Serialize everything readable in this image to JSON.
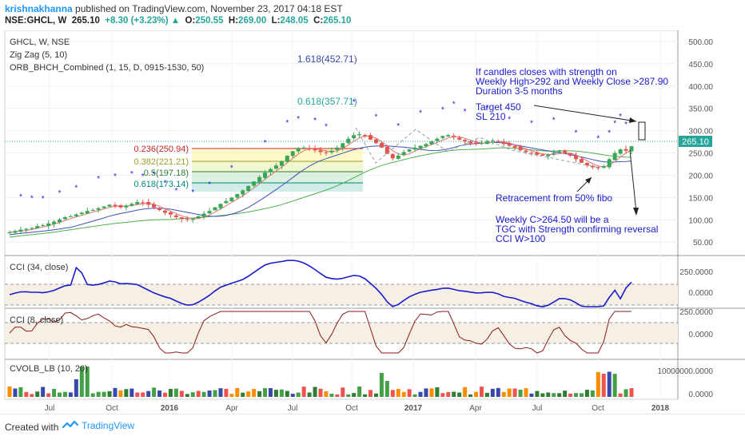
{
  "header": {
    "author": "krishnakhanna",
    "published": "published on TradingView.com, November 23, 2017 04:18 EST",
    "symbol": "NSE:GHCL, W",
    "price": "265.10",
    "change": "+8.30 (+3.23%)",
    "o_label": "O:",
    "o_value": "250.55",
    "h_label": "H:",
    "h_value": "269.00",
    "l_label": "L:",
    "l_value": "248.05",
    "c_label": "C:",
    "c_value": "265.10"
  },
  "legend": {
    "line1": "GHCL, W, NSE",
    "line2": "Zig Zag (5, 10)",
    "line3": "ORB_BHCH_Combined (1, 15, D, 0915-1530, 50)"
  },
  "annotations": {
    "fib_ext_1618": "1.618(452.71)",
    "fib_ext_0618": "0.618(357.71)",
    "cond1": "If candles closes with strength on",
    "cond2": "Weekly High>292 and Weekly Close >287.90",
    "cond3": "Duration 3-5 months",
    "target": "Target 450",
    "sl": "SL 210",
    "retr": "Retracement from 50% fibo",
    "weekly1": "Weekly C>264.50 will be a",
    "weekly2": "TGC with Strength confirming reversal",
    "weekly3": "CCI W>100",
    "price_tag": "265.10"
  },
  "fib": [
    {
      "label": "0.236(250.94)",
      "color": "#c62828"
    },
    {
      "label": "0.382(221.21)",
      "color": "#9e9d24"
    },
    {
      "label": "0.5(197.18)",
      "color": "#2e7d32"
    },
    {
      "label": "0.618(173.14)",
      "color": "#00897b"
    }
  ],
  "panes": {
    "cci34": "CCI (34, close)",
    "cci8": "CCI (8, close)",
    "cvolb": "CVOLB_LB (10, 20)"
  },
  "axis": {
    "price_ticks": [
      "500.00",
      "450.00",
      "400.00",
      "350.00",
      "300.00",
      "250.00",
      "200.00",
      "150.00",
      "100.00",
      "50.00"
    ],
    "cci34_ticks": [
      "250.0000",
      "0.0000"
    ],
    "cci8_ticks": [
      "250.0000",
      "0.0000"
    ],
    "vol_ticks": [
      "10000000.0000",
      "0.0000"
    ],
    "time_ticks": [
      "Jul",
      "Oct",
      "2016",
      "Apr",
      "Jul",
      "Oct",
      "2017",
      "Apr",
      "Jul",
      "Oct",
      "2018"
    ]
  },
  "footer": {
    "created": "Created with",
    "brand": "TradingView"
  },
  "colors": {
    "up": "#26a69a",
    "candle_up": "#3aa757",
    "candle_down": "#e5534b",
    "cci34": "#1a1acd",
    "cci8": "#8b1a1a",
    "link": "#2196f3"
  },
  "chart_data": {
    "type": "candlestick",
    "symbol": "GHCL",
    "interval": "W",
    "last_close": 265.1,
    "ylim": [
      20,
      525
    ],
    "fib_retracement": [
      {
        "level": 0.236,
        "price": 250.94
      },
      {
        "level": 0.382,
        "price": 221.21
      },
      {
        "level": 0.5,
        "price": 197.18
      },
      {
        "level": 0.618,
        "price": 173.14
      }
    ],
    "fib_extension": [
      {
        "level": 1.618,
        "price": 452.71
      },
      {
        "level": 0.618,
        "price": 357.71
      }
    ],
    "close_series": [
      72,
      75,
      78,
      80,
      82,
      86,
      88,
      92,
      96,
      101,
      106,
      108,
      112,
      116,
      120,
      122,
      126,
      130,
      134,
      131,
      128,
      132,
      136,
      140,
      138,
      134,
      128,
      122,
      116,
      112,
      106,
      102,
      100,
      102,
      108,
      114,
      120,
      128,
      136,
      142,
      150,
      158,
      166,
      176,
      186,
      196,
      206,
      214,
      222,
      232,
      244,
      254,
      260,
      262,
      260,
      256,
      252,
      250,
      255,
      262,
      272,
      282,
      290,
      292,
      288,
      280,
      272,
      262,
      248,
      238,
      244,
      252,
      258,
      262,
      266,
      270,
      276,
      282,
      288,
      290,
      286,
      280,
      276,
      272,
      270,
      272,
      276,
      278,
      276,
      270,
      266,
      262,
      256,
      252,
      250,
      246,
      244,
      246,
      250,
      254,
      250,
      244,
      236,
      228,
      222,
      218,
      216,
      220,
      236,
      250,
      258,
      255,
      265.1
    ]
  }
}
